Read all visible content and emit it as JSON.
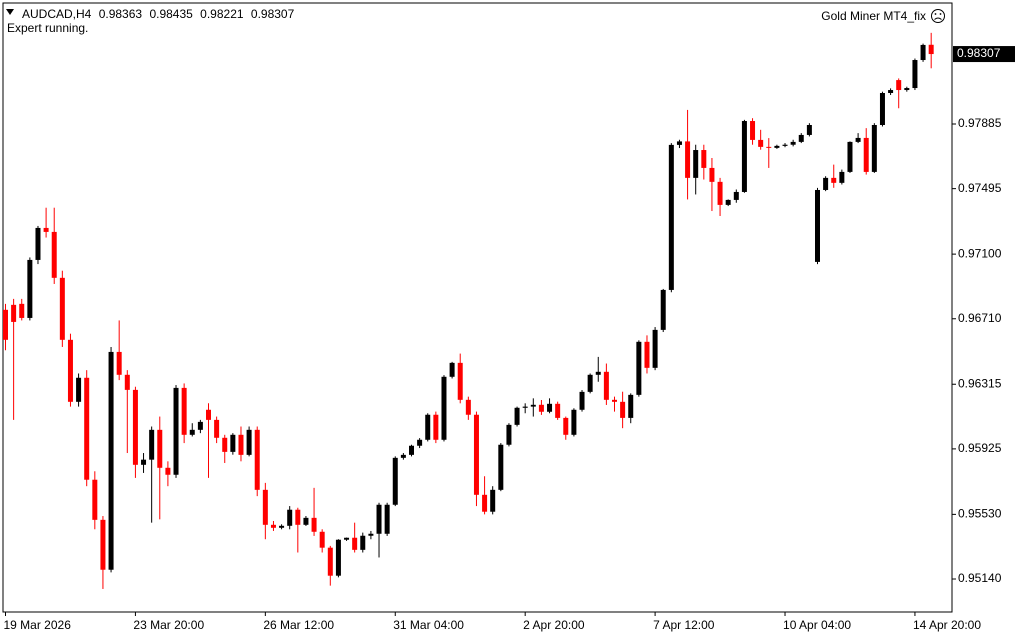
{
  "chart_data": {
    "type": "candlestick",
    "symbol": "AUDCAD,H4",
    "status": "Expert running.",
    "expert": "Gold Miner MT4_fix",
    "up_color": "#000000",
    "down_color": "#ff0000",
    "ylim": [
      0.94941,
      0.98615
    ],
    "yticks": [
      0.97885,
      0.97495,
      {
        "value": 0.971,
        "label": "0.97100"
      },
      {
        "value": 0.9671,
        "label": "0.96710"
      },
      0.96315,
      0.95925,
      {
        "value": 0.9553,
        "label": "0.95530"
      },
      {
        "value": 0.9514,
        "label": "0.95140"
      }
    ],
    "categories": [
      "19 Mar 2026",
      null,
      null,
      null,
      null,
      null,
      null,
      null,
      null,
      null,
      null,
      null,
      null,
      null,
      null,
      null,
      "23 Mar 20:00",
      null,
      null,
      null,
      null,
      null,
      null,
      null,
      null,
      null,
      null,
      null,
      null,
      null,
      null,
      null,
      "26 Mar 12:00",
      null,
      null,
      null,
      null,
      null,
      null,
      null,
      null,
      null,
      null,
      null,
      null,
      null,
      null,
      null,
      "31 Mar 04:00",
      null,
      null,
      null,
      null,
      null,
      null,
      null,
      null,
      null,
      null,
      null,
      null,
      null,
      null,
      null,
      "2 Apr 20:00",
      null,
      null,
      null,
      null,
      null,
      null,
      null,
      null,
      null,
      null,
      null,
      null,
      null,
      null,
      null,
      "7 Apr 12:00",
      null,
      null,
      null,
      null,
      null,
      null,
      null,
      null,
      null,
      null,
      null,
      null,
      null,
      null,
      null,
      "10 Apr 04:00",
      null,
      null,
      null,
      null,
      null,
      null,
      null,
      null,
      null,
      null,
      null,
      null,
      null,
      null,
      null,
      "14 Apr 20:00",
      null,
      null
    ],
    "candles": [
      [
        0.96764,
        0.968,
        0.9652,
        0.96583
      ],
      [
        0.96794,
        0.9683,
        0.961,
        0.96691
      ],
      [
        0.968,
        0.9683,
        0.967,
        0.96715
      ],
      [
        0.96715,
        0.9708,
        0.967,
        0.97065
      ],
      [
        0.97065,
        0.9727,
        0.9704,
        0.97258
      ],
      [
        0.97258,
        0.9738,
        0.972,
        0.97234
      ],
      [
        0.97234,
        0.9738,
        0.9692,
        0.96957
      ],
      [
        0.96957,
        0.97,
        0.9654,
        0.96583
      ],
      [
        0.96583,
        0.9662,
        0.9618,
        0.96209
      ],
      [
        0.96209,
        0.9638,
        0.9618,
        0.96354
      ],
      [
        0.96354,
        0.964,
        0.957,
        0.95739
      ],
      [
        0.95739,
        0.9579,
        0.9544,
        0.95497
      ],
      [
        0.95497,
        0.9552,
        0.9508,
        0.95196
      ],
      [
        0.95196,
        0.9654,
        0.9518,
        0.9651
      ],
      [
        0.9651,
        0.967,
        0.9634,
        0.96372
      ],
      [
        0.96372,
        0.964,
        0.959,
        0.96281
      ],
      [
        0.96281,
        0.963,
        0.9575,
        0.95829
      ],
      [
        0.95829,
        0.959,
        0.9578,
        0.9586
      ],
      [
        0.9586,
        0.9606,
        0.9548,
        0.9604
      ],
      [
        0.9604,
        0.9612,
        0.955,
        0.95811
      ],
      [
        0.95811,
        0.9585,
        0.957,
        0.95769
      ],
      [
        0.95769,
        0.9631,
        0.9575,
        0.96293
      ],
      [
        0.96293,
        0.9632,
        0.9596,
        0.9601
      ],
      [
        0.9601,
        0.9608,
        0.96,
        0.9604
      ],
      [
        0.9604,
        0.961,
        0.9602,
        0.96088
      ],
      [
        0.96161,
        0.962,
        0.9575,
        0.961
      ],
      [
        0.961,
        0.9612,
        0.9596,
        0.95992
      ],
      [
        0.95992,
        0.9601,
        0.9584,
        0.95907
      ],
      [
        0.95907,
        0.9602,
        0.9589,
        0.9601
      ],
      [
        0.9601,
        0.9606,
        0.9585,
        0.95889
      ],
      [
        0.95889,
        0.9606,
        0.9588,
        0.9604
      ],
      [
        0.9604,
        0.9606,
        0.9564,
        0.95678
      ],
      [
        0.95678,
        0.9572,
        0.9538,
        0.95467
      ],
      [
        0.95467,
        0.9549,
        0.9543,
        0.95449
      ],
      [
        0.95449,
        0.9547,
        0.9544,
        0.95461
      ],
      [
        0.95461,
        0.9558,
        0.9544,
        0.95558
      ],
      [
        0.95558,
        0.9557,
        0.953,
        0.95467
      ],
      [
        0.95467,
        0.9552,
        0.9546,
        0.95509
      ],
      [
        0.95509,
        0.9569,
        0.954,
        0.95425
      ],
      [
        0.95425,
        0.9544,
        0.953,
        0.95329
      ],
      [
        0.95329,
        0.9534,
        0.951,
        0.9516
      ],
      [
        0.9516,
        0.9538,
        0.9515,
        0.95377
      ],
      [
        0.95377,
        0.9539,
        0.9537,
        0.95389
      ],
      [
        0.95389,
        0.9548,
        0.953,
        0.95316
      ],
      [
        0.95316,
        0.9542,
        0.953,
        0.95401
      ],
      [
        0.95401,
        0.9543,
        0.9538,
        0.95413
      ],
      [
        0.95413,
        0.956,
        0.9527,
        0.95588
      ],
      [
        0.95413,
        0.956,
        0.954,
        0.95588
      ],
      [
        0.95588,
        0.9588,
        0.9558,
        0.95871
      ],
      [
        0.95871,
        0.959,
        0.9586,
        0.95889
      ],
      [
        0.95889,
        0.9595,
        0.9588,
        0.95944
      ],
      [
        0.95944,
        0.9599,
        0.9593,
        0.9598
      ],
      [
        0.9598,
        0.9614,
        0.9597,
        0.96131
      ],
      [
        0.96131,
        0.9615,
        0.9596,
        0.9598
      ],
      [
        0.9598,
        0.9637,
        0.9597,
        0.9636
      ],
      [
        0.9636,
        0.9645,
        0.9635,
        0.96444
      ],
      [
        0.96444,
        0.965,
        0.962,
        0.96221
      ],
      [
        0.96221,
        0.9624,
        0.961,
        0.96131
      ],
      [
        0.96131,
        0.9615,
        0.9558,
        0.95648
      ],
      [
        0.95648,
        0.9576,
        0.9553,
        0.95546
      ],
      [
        0.95546,
        0.957,
        0.9553,
        0.95678
      ],
      [
        0.95678,
        0.9596,
        0.9567,
        0.9595
      ],
      [
        0.9595,
        0.9608,
        0.9594,
        0.9607
      ],
      [
        0.9607,
        0.9618,
        0.9606,
        0.96173
      ],
      [
        0.96173,
        0.962,
        0.9614,
        0.9618
      ],
      [
        0.9618,
        0.9623,
        0.9612,
        0.96191
      ],
      [
        0.96191,
        0.9622,
        0.9613,
        0.96149
      ],
      [
        0.96149,
        0.9623,
        0.9614,
        0.96197
      ],
      [
        0.96197,
        0.9621,
        0.961,
        0.96112
      ],
      [
        0.96112,
        0.9612,
        0.9598,
        0.9601
      ],
      [
        0.9601,
        0.9617,
        0.96,
        0.96161
      ],
      [
        0.96161,
        0.9628,
        0.9615,
        0.96269
      ],
      [
        0.96269,
        0.9638,
        0.9626,
        0.96372
      ],
      [
        0.96372,
        0.9648,
        0.9633,
        0.9639
      ],
      [
        0.9639,
        0.9644,
        0.9619,
        0.96221
      ],
      [
        0.96221,
        0.9624,
        0.9615,
        0.96209
      ],
      [
        0.96209,
        0.9627,
        0.9605,
        0.96112
      ],
      [
        0.96112,
        0.9626,
        0.9608,
        0.96251
      ],
      [
        0.96251,
        0.9658,
        0.9624,
        0.96571
      ],
      [
        0.96571,
        0.9661,
        0.9638,
        0.96414
      ],
      [
        0.96414,
        0.9666,
        0.964,
        0.96643
      ],
      [
        0.96643,
        0.9689,
        0.9663,
        0.96884
      ],
      [
        0.96884,
        0.9777,
        0.9687,
        0.97759
      ],
      [
        0.97759,
        0.9779,
        0.9774,
        0.9778
      ],
      [
        0.9778,
        0.9797,
        0.9743,
        0.9756
      ],
      [
        0.9756,
        0.9776,
        0.9746,
        0.97728
      ],
      [
        0.97728,
        0.9776,
        0.9755,
        0.9762
      ],
      [
        0.9762,
        0.9768,
        0.9736,
        0.97536
      ],
      [
        0.97536,
        0.9756,
        0.9733,
        0.97397
      ],
      [
        0.97397,
        0.9743,
        0.9739,
        0.97427
      ],
      [
        0.97427,
        0.9749,
        0.9741,
        0.97475
      ],
      [
        0.97475,
        0.9791,
        0.9747,
        0.97903
      ],
      [
        0.97903,
        0.9792,
        0.9776,
        0.97789
      ],
      [
        0.97789,
        0.9785,
        0.9773,
        0.97747
      ],
      [
        0.97747,
        0.978,
        0.9762,
        0.97741
      ],
      [
        0.97741,
        0.9776,
        0.97735,
        0.97753
      ],
      [
        0.97753,
        0.9777,
        0.97745,
        0.9776
      ],
      [
        0.9776,
        0.9779,
        0.9775,
        0.97777
      ],
      [
        0.97777,
        0.9783,
        0.9777,
        0.97819
      ],
      [
        0.97819,
        0.9789,
        0.9781,
        0.97879
      ],
      [
        0.97053,
        0.975,
        0.9704,
        0.97487
      ],
      [
        0.97487,
        0.9757,
        0.9748,
        0.9756
      ],
      [
        0.9756,
        0.9764,
        0.975,
        0.9753
      ],
      [
        0.9753,
        0.9761,
        0.9752,
        0.97596
      ],
      [
        0.97596,
        0.9778,
        0.9759,
        0.97777
      ],
      [
        0.97777,
        0.9783,
        0.9777,
        0.97801
      ],
      [
        0.97801,
        0.9786,
        0.9758,
        0.97596
      ],
      [
        0.97596,
        0.9789,
        0.9759,
        0.97879
      ],
      [
        0.97879,
        0.9808,
        0.9787,
        0.98072
      ],
      [
        0.98072,
        0.981,
        0.9806,
        0.9809
      ],
      [
        0.9815,
        0.9816,
        0.9798,
        0.9809
      ],
      [
        0.9809,
        0.9811,
        0.9808,
        0.98102
      ],
      [
        0.98102,
        0.9828,
        0.9809,
        0.98271
      ],
      [
        0.98271,
        0.9837,
        0.9826,
        0.98362
      ],
      [
        0.98363,
        0.98435,
        0.98221,
        0.98307
      ]
    ]
  }
}
